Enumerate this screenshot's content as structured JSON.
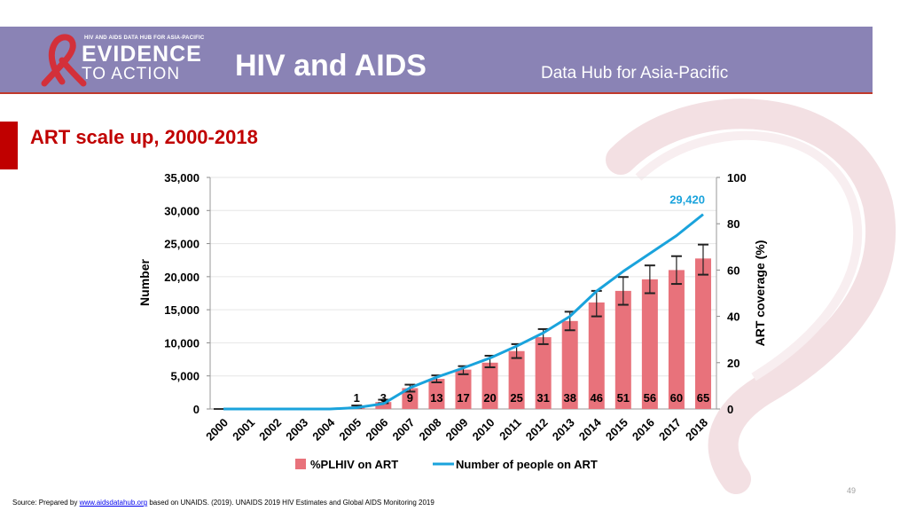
{
  "header": {
    "logo_top": "HIV AND AIDS DATA HUB FOR ASIA-PACIFIC",
    "logo_line1": "EVIDENCE",
    "logo_line2": "TO ACTION",
    "title": "HIV and AIDS",
    "subtitle": "Data Hub for Asia-Pacific"
  },
  "slide": {
    "title": "ART scale up, 2000-2018"
  },
  "colors": {
    "banner": "#8a83b5",
    "bar": "#e8727b",
    "line": "#1aa3dc",
    "title_red": "#c00000",
    "ribbon": "#d3303a",
    "highlight": "#1aa3dc"
  },
  "chart_data": {
    "type": "bar",
    "categories": [
      "2000",
      "2001",
      "2002",
      "2003",
      "2004",
      "2005",
      "2006",
      "2007",
      "2008",
      "2009",
      "2010",
      "2011",
      "2012",
      "2013",
      "2014",
      "2015",
      "2016",
      "2017",
      "2018"
    ],
    "series": [
      {
        "name": "%PLHIV on ART",
        "axis": "right",
        "kind": "bar",
        "values": [
          0,
          0,
          0,
          0,
          0,
          1,
          3,
          9,
          13,
          17,
          20,
          25,
          31,
          38,
          46,
          51,
          56,
          60,
          65
        ],
        "labels": [
          "",
          "",
          "",
          "",
          "",
          "1",
          "3",
          "9",
          "13",
          "17",
          "20",
          "25",
          "31",
          "38",
          "46",
          "51",
          "56",
          "60",
          "65"
        ],
        "error_low": [
          0,
          0,
          0,
          0,
          0,
          0.5,
          2.5,
          7.5,
          11.5,
          15,
          18,
          22,
          28,
          34,
          40,
          45,
          50,
          54,
          58
        ],
        "error_high": [
          0,
          0,
          0,
          0,
          0,
          1.5,
          4,
          10.5,
          14.5,
          18.5,
          23,
          28,
          34.5,
          42,
          51,
          57,
          62,
          66,
          71
        ]
      },
      {
        "name": "Number of people on ART",
        "axis": "left",
        "kind": "line",
        "values": [
          0,
          0,
          0,
          0,
          0,
          200,
          800,
          3200,
          4800,
          6200,
          7700,
          9500,
          11500,
          14000,
          17800,
          20800,
          23500,
          26200,
          29420
        ]
      }
    ],
    "highlight_label": "29,420",
    "y_left": {
      "title": "Number",
      "min": 0,
      "max": 35000,
      "ticks": [
        "0",
        "5,000",
        "10,000",
        "15,000",
        "20,000",
        "25,000",
        "30,000",
        "35,000"
      ]
    },
    "y_right": {
      "title": "ART coverage (%)",
      "min": 0,
      "max": 100,
      "ticks": [
        "0",
        "20",
        "40",
        "60",
        "80",
        "100"
      ]
    },
    "legend": [
      "%PLHIV on ART",
      "Number of people on ART"
    ]
  },
  "footer": {
    "source_prefix": "Source: Prepared by",
    "source_link": "www.aidsdatahub.org",
    "source_suffix": " based on UNAIDS. (2019). UNAIDS 2019 HIV Estimates and Global AIDS Monitoring 2019",
    "page_number": "49"
  }
}
